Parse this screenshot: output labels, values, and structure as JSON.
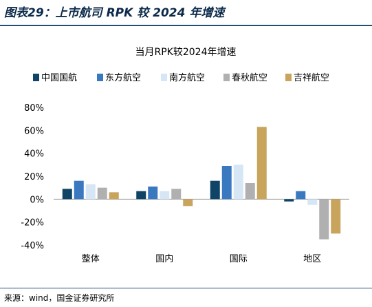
{
  "figure_title": "图表29：上市航司 RPK 较 2024 年增速",
  "source": "来源：wind，国金证券研究所",
  "chart_data": {
    "type": "bar",
    "title": "当月RPK较2024年增速",
    "categories": [
      "整体",
      "国内",
      "国际",
      "地区"
    ],
    "series": [
      {
        "name": "中国国航",
        "color": "#0f4466",
        "values": [
          9,
          7,
          16,
          -2
        ]
      },
      {
        "name": "东方航空",
        "color": "#3a78c0",
        "values": [
          16,
          11,
          29,
          7
        ]
      },
      {
        "name": "南方航空",
        "color": "#d6e6f5",
        "values": [
          13,
          7,
          30,
          -5
        ]
      },
      {
        "name": "春秋航空",
        "color": "#b0b0b0",
        "values": [
          10,
          9,
          14,
          -35
        ]
      },
      {
        "name": "吉祥航空",
        "color": "#c9a45c",
        "values": [
          6,
          -6,
          63,
          -30
        ]
      }
    ],
    "yticks": [
      "80%",
      "60%",
      "40%",
      "20%",
      "0%",
      "-20%",
      "-40%"
    ],
    "ylim": [
      -40,
      80
    ],
    "legend": "top",
    "grid": false
  }
}
